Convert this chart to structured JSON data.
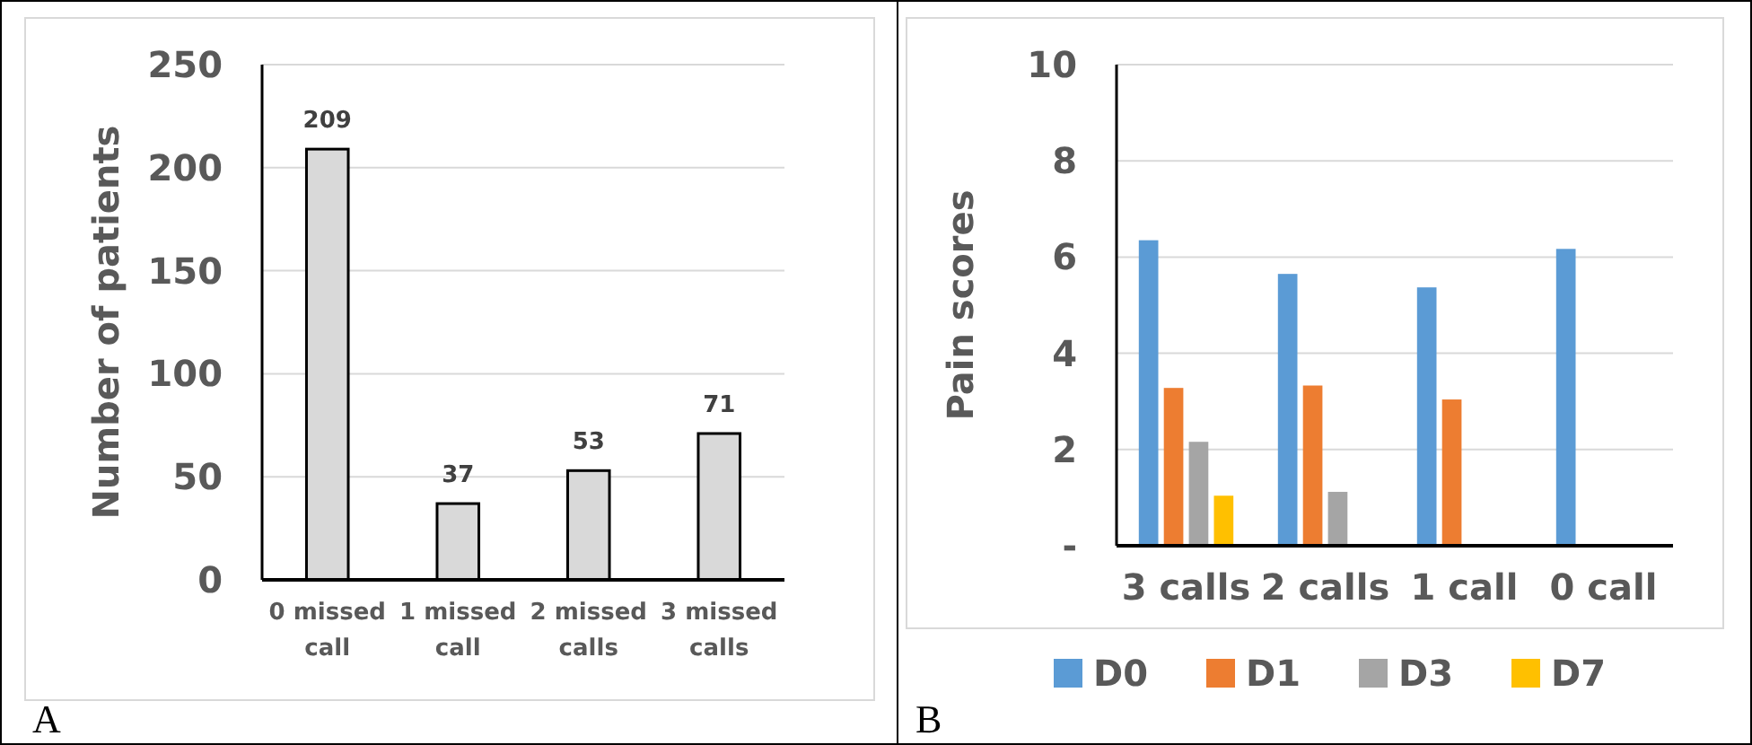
{
  "chart_data": [
    {
      "type": "bar",
      "ylabel": "Number of patients",
      "categories": [
        "0 missed call",
        "1 missed call",
        "2 missed calls",
        "3 missed calls"
      ],
      "values": [
        209,
        37,
        53,
        71
      ],
      "color": "#d9d9d9",
      "ylim": [
        0,
        250
      ],
      "yticks": [
        0,
        50,
        100,
        150,
        200,
        250
      ],
      "grid": "y",
      "data_labels": true,
      "annotations": [
        "A"
      ]
    },
    {
      "type": "bar",
      "ylabel": "Pain scores",
      "categories": [
        "3 calls",
        "2 calls",
        "1 call",
        "0 call"
      ],
      "series": [
        {
          "name": "D0",
          "color": "#5b9bd5",
          "values": [
            6.35,
            5.65,
            5.37,
            6.17
          ]
        },
        {
          "name": "D1",
          "color": "#ed7d31",
          "values": [
            3.28,
            3.33,
            3.04,
            null
          ]
        },
        {
          "name": "D3",
          "color": "#a5a5a5",
          "values": [
            2.16,
            1.12,
            null,
            null
          ]
        },
        {
          "name": "D7",
          "color": "#ffc000",
          "values": [
            1.04,
            null,
            null,
            null
          ]
        }
      ],
      "ylim": [
        0,
        10
      ],
      "yticks": [
        {
          "value": 0,
          "label": "-"
        },
        2,
        4,
        6,
        8,
        10
      ],
      "grid": "y",
      "legend": "bottom",
      "annotations": [
        "B"
      ]
    }
  ]
}
